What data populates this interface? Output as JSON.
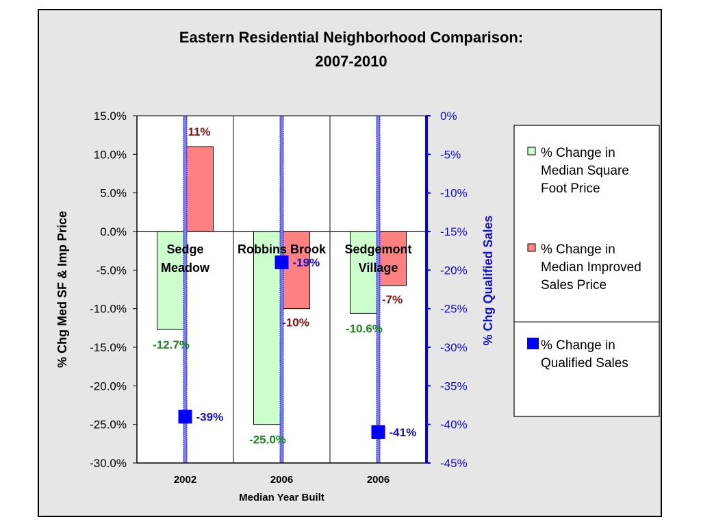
{
  "chart_data": {
    "type": "bar",
    "title": "Eastern Residential Neighborhood Comparison:",
    "title_line2": "2007-2010",
    "xlabel": "Median Year Built",
    "ylabel": "% Chg Med SF & Imp Price",
    "y2label": "% Chg Qualified Sales",
    "categories": [
      "2002",
      "2006",
      "2006"
    ],
    "group_labels": [
      [
        "Sedge",
        "Meadow"
      ],
      [
        "Robbins Brook"
      ],
      [
        "Sedgemont",
        "Village"
      ]
    ],
    "ylim": [
      -30,
      15
    ],
    "y_ticks": [
      15,
      10,
      5,
      0,
      -5,
      -10,
      -15,
      -20,
      -25,
      -30
    ],
    "y_tick_labels": [
      "15.0%",
      "10.0%",
      "5.0%",
      "0.0%",
      "-5.0%",
      "-10.0%",
      "-15.0%",
      "-20.0%",
      "-25.0%",
      "-30.0%"
    ],
    "y2lim": [
      -45,
      0
    ],
    "y2_ticks": [
      0,
      -5,
      -10,
      -15,
      -20,
      -25,
      -30,
      -35,
      -40,
      -45
    ],
    "y2_tick_labels": [
      "0%",
      "-5%",
      "-10%",
      "-15%",
      "-20%",
      "-25%",
      "-30%",
      "-35%",
      "-40%",
      "-45%"
    ],
    "series": [
      {
        "name": "% Change in Median Square Foot Price",
        "axis": "left",
        "kind": "bar",
        "color": "#ccffcc",
        "values": [
          -12.7,
          -25.0,
          -10.6
        ],
        "labels": [
          "-12.7%",
          "-25.0%",
          "-10.6%"
        ]
      },
      {
        "name": "% Change in Median Improved Sales Price",
        "axis": "left",
        "kind": "bar",
        "color": "#ff8080",
        "values": [
          11,
          -10,
          -7
        ],
        "labels": [
          "11%",
          "-10%",
          "-7%"
        ]
      },
      {
        "name": "% Change in Qualified Sales",
        "axis": "right",
        "kind": "marker",
        "color": "#0000ff",
        "values": [
          -39,
          -19,
          -41
        ],
        "labels": [
          "-39%",
          "-19%",
          "-41%"
        ]
      }
    ],
    "legend": {
      "position": "right",
      "entries": [
        [
          "% Change in",
          "Median Square",
          "Foot Price"
        ],
        [
          "% Change in",
          "Median Improved",
          "Sales Price"
        ],
        [
          "% Change in",
          "Qualified Sales"
        ]
      ]
    },
    "grid": false
  }
}
